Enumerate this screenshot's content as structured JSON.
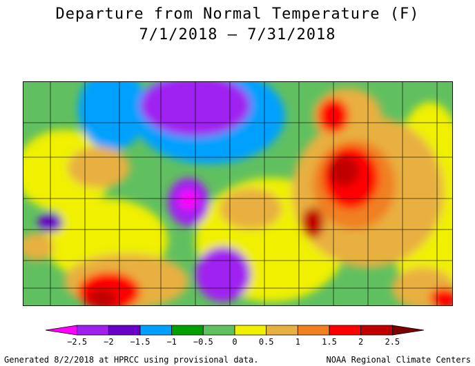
{
  "title": "Departure from Normal Temperature (F)",
  "subtitle": "7/1/2018 – 7/31/2018",
  "legend": {
    "ticks": [
      "-2.5",
      "-2",
      "-1.5",
      "-1",
      "-0.5",
      "0",
      "0.5",
      "1",
      "1.5",
      "2",
      "2.5"
    ],
    "colors": [
      "#ff00ff",
      "#a020f0",
      "#6a00c8",
      "#00a0ff",
      "#00a000",
      "#60c060",
      "#f0f000",
      "#e8b040",
      "#f08020",
      "#ff0000",
      "#c00000",
      "#7a0000"
    ]
  },
  "footer_left": "Generated 8/2/2018 at HPRCC using provisional data.",
  "footer_right": "NOAA Regional Climate Centers"
}
